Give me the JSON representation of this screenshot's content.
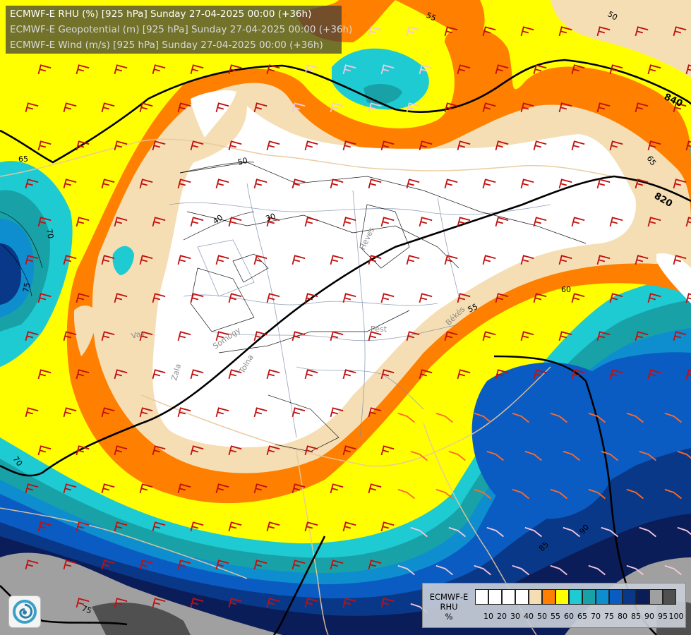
{
  "titles": {
    "rhu": "ECMWF-E RHU (%) [925 hPa] Sunday 27-04-2025 00:00 (+36h)",
    "geopotential": "ECMWF-E Geopotential (m) [925 hPa] Sunday 27-04-2025 00:00 (+36h)",
    "wind": "ECMWF-E Wind (m/s) [925 hPa] Sunday 27-04-2025 00:00 (+36h)"
  },
  "legend": {
    "name_lines": [
      "ECMWF-E",
      "RHU",
      "%"
    ],
    "ticks": [
      "10",
      "20",
      "30",
      "40",
      "50",
      "55",
      "60",
      "65",
      "70",
      "75",
      "80",
      "85",
      "90",
      "95",
      "100"
    ],
    "colors": [
      "#ffffff",
      "#ffffff",
      "#ffffff",
      "#ffffff",
      "#f5deb3",
      "#ff7f00",
      "#ffff00",
      "#1ecbd2",
      "#18a2a8",
      "#0e8ecf",
      "#0a5cc2",
      "#0a3888",
      "#0b1d58",
      "#a0a0a0",
      "#505050"
    ]
  },
  "contour_labels": {
    "rhu": [
      "50",
      "55",
      "65",
      "70",
      "75",
      "40",
      "30",
      "50",
      "60",
      "55",
      "65",
      "70",
      "90",
      "85",
      "75"
    ],
    "geopotential": [
      "840",
      "820"
    ]
  },
  "place_labels": [
    "Vas",
    "Zala",
    "Somogy",
    "Tolna",
    "Pest",
    "Heves",
    "Békés"
  ],
  "colors": {
    "rhu_50": "#f5deb3",
    "rhu_55": "#ff7f00",
    "rhu_60": "#ffff00",
    "rhu_65": "#1ecbd2",
    "rhu_70": "#18a2a8",
    "rhu_75": "#0e8ecf",
    "rhu_80": "#0a5cc2",
    "rhu_85": "#0a3888",
    "rhu_90": "#0b1d58",
    "rhu_95": "#a0a0a0",
    "rhu_100": "#505050",
    "wind_barb": "#c01010"
  },
  "icons": {
    "logo": "ecmwf-swirl-logo-icon"
  }
}
